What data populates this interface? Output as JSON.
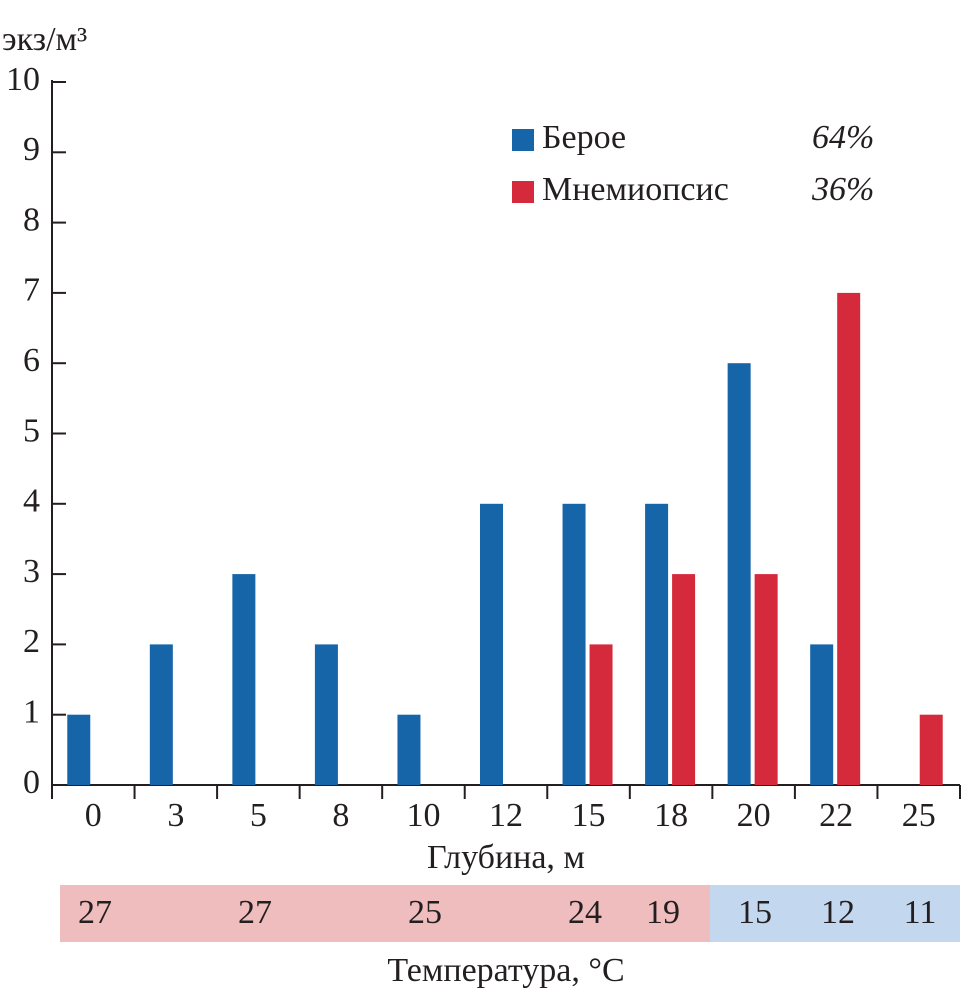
{
  "chart_data": {
    "type": "bar",
    "y_label": "экз/м³",
    "x_label": "Глубина, м",
    "categories": [
      "0",
      "3",
      "5",
      "8",
      "10",
      "12",
      "15",
      "18",
      "20",
      "22",
      "25"
    ],
    "series": [
      {
        "name": "Берое",
        "color": "#1565a8",
        "share": {
          "value": 64,
          "label": "64%"
        },
        "values": [
          1,
          2,
          3,
          2,
          1,
          4,
          4,
          4,
          6,
          2,
          0
        ]
      },
      {
        "name": "Мнемиопсис",
        "color": "#d42a3c",
        "share": {
          "value": 36,
          "label": "36%"
        },
        "values": [
          0,
          0,
          0,
          0,
          0,
          0,
          2,
          3,
          3,
          7,
          1
        ]
      }
    ],
    "ylim": [
      0,
      10
    ],
    "yticks": [
      0,
      1,
      2,
      3,
      4,
      5,
      6,
      7,
      8,
      9,
      10
    ],
    "temperature": {
      "label": "Температура, °C",
      "values": [
        27,
        27,
        25,
        24,
        19,
        15,
        12,
        11
      ]
    }
  }
}
